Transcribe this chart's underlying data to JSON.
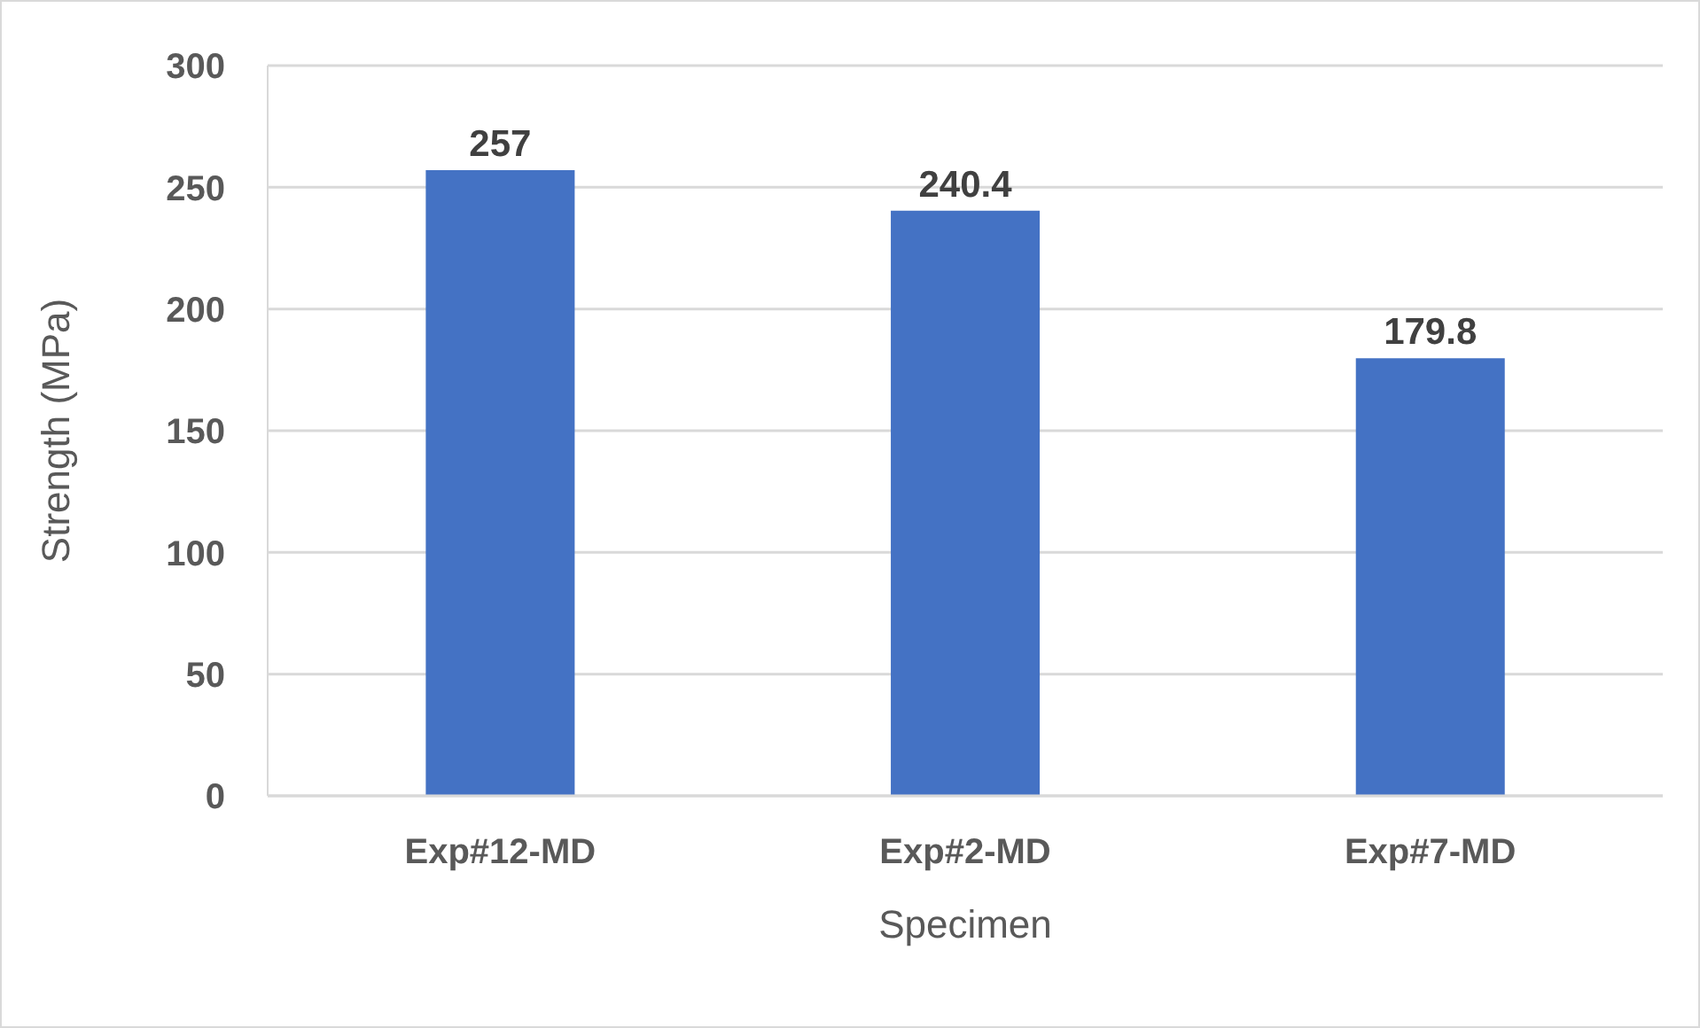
{
  "chart_data": {
    "type": "bar",
    "xlabel": "Specimen",
    "ylabel": "Strength (MPa)",
    "categories": [
      "Exp#12-MD",
      "Exp#2-MD",
      "Exp#7-MD"
    ],
    "values": [
      257,
      240.4,
      179.8
    ],
    "color": "#4472c4",
    "ylim": [
      0,
      300
    ],
    "yticks": [
      0,
      50,
      100,
      150,
      200,
      250,
      300
    ],
    "grid": "y",
    "data_labels": true
  }
}
